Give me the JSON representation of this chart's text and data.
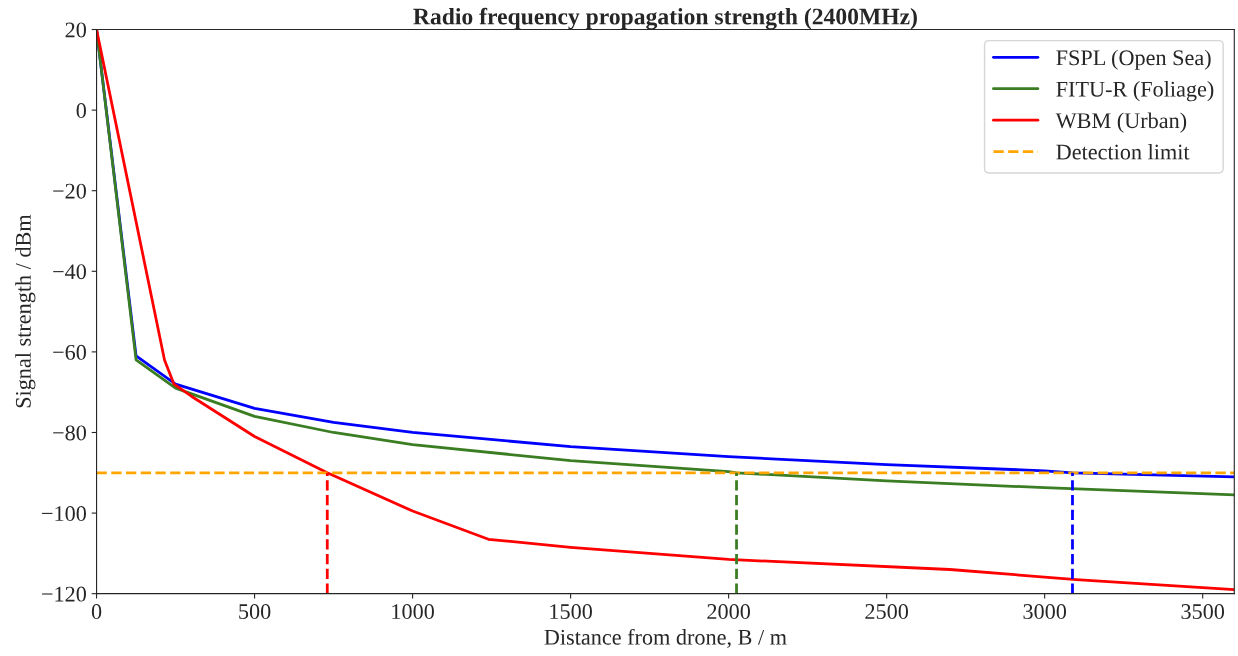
{
  "chart_data": {
    "type": "line",
    "title": "Radio frequency propagation strength (2400MHz)",
    "xlabel": "Distance from drone, B / m",
    "ylabel": "Signal strength / dBm",
    "xlim": [
      0,
      3600
    ],
    "ylim": [
      -120,
      20
    ],
    "xticks": [
      0,
      500,
      1000,
      1500,
      2000,
      2500,
      3000,
      3500
    ],
    "yticks": [
      -120,
      -100,
      -80,
      -60,
      -40,
      -20,
      0,
      20
    ],
    "series": [
      {
        "name": "FSPL (Open Sea)",
        "color": "#0000ff",
        "x": [
          0,
          125,
          250,
          500,
          750,
          1000,
          1500,
          2000,
          2500,
          3000,
          3088,
          3600
        ],
        "values": [
          20,
          -61,
          -68,
          -74,
          -77.5,
          -80,
          -83.5,
          -86,
          -88,
          -89.5,
          -90,
          -91
        ]
      },
      {
        "name": "FITU-R (Foliage)",
        "color": "#3a7d22",
        "x": [
          0,
          125,
          250,
          500,
          750,
          1000,
          1500,
          2000,
          2025,
          2500,
          3000,
          3600
        ],
        "values": [
          20,
          -62,
          -69,
          -76,
          -80,
          -83,
          -87,
          -89.7,
          -90,
          -92,
          -93.7,
          -95.5
        ]
      },
      {
        "name": "WBM (Urban)",
        "color": "#ff0000",
        "x": [
          0,
          215,
          245,
          300,
          500,
          730,
          1000,
          1240,
          1500,
          2000,
          2700,
          3100,
          3600
        ],
        "values": [
          20,
          -62,
          -68,
          -71,
          -81,
          -90,
          -99.5,
          -106.5,
          -108.5,
          -111.5,
          -114,
          -116.5,
          -119
        ]
      }
    ],
    "ref_lines": [
      {
        "axis": "y",
        "value": -90,
        "label": "Detection limit",
        "color": "#ffa500",
        "line_style": "dashed"
      },
      {
        "axis": "x",
        "value": 730,
        "color": "#ff0000",
        "line_style": "dashed"
      },
      {
        "axis": "x",
        "value": 2025,
        "color": "#3a7d22",
        "line_style": "dashed"
      },
      {
        "axis": "x",
        "value": 3088,
        "color": "#0000ff",
        "line_style": "dashed"
      }
    ],
    "grid": false,
    "legend": "top right",
    "marker": "none",
    "line_style": "solid"
  }
}
